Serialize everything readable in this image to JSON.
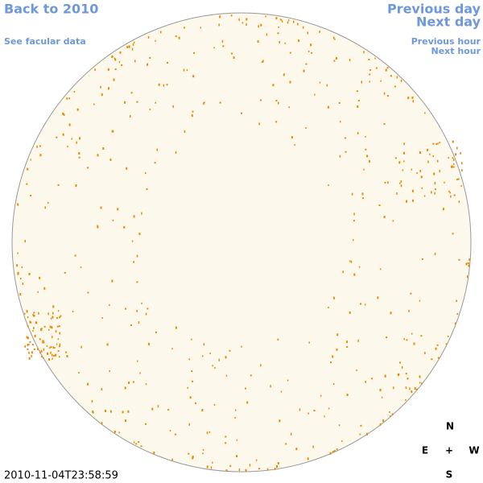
{
  "nav": {
    "back": "Back to 2010",
    "facular": "See facular data",
    "previous_day": "Previous day",
    "next_day": "Next day",
    "previous_hour": "Previous hour",
    "next_hour": "Next hour"
  },
  "timestamp": "2010-11-04T23:58:59",
  "compass": {
    "north": "N",
    "east": "E",
    "center": "+",
    "west": "W",
    "south": "S"
  }
}
